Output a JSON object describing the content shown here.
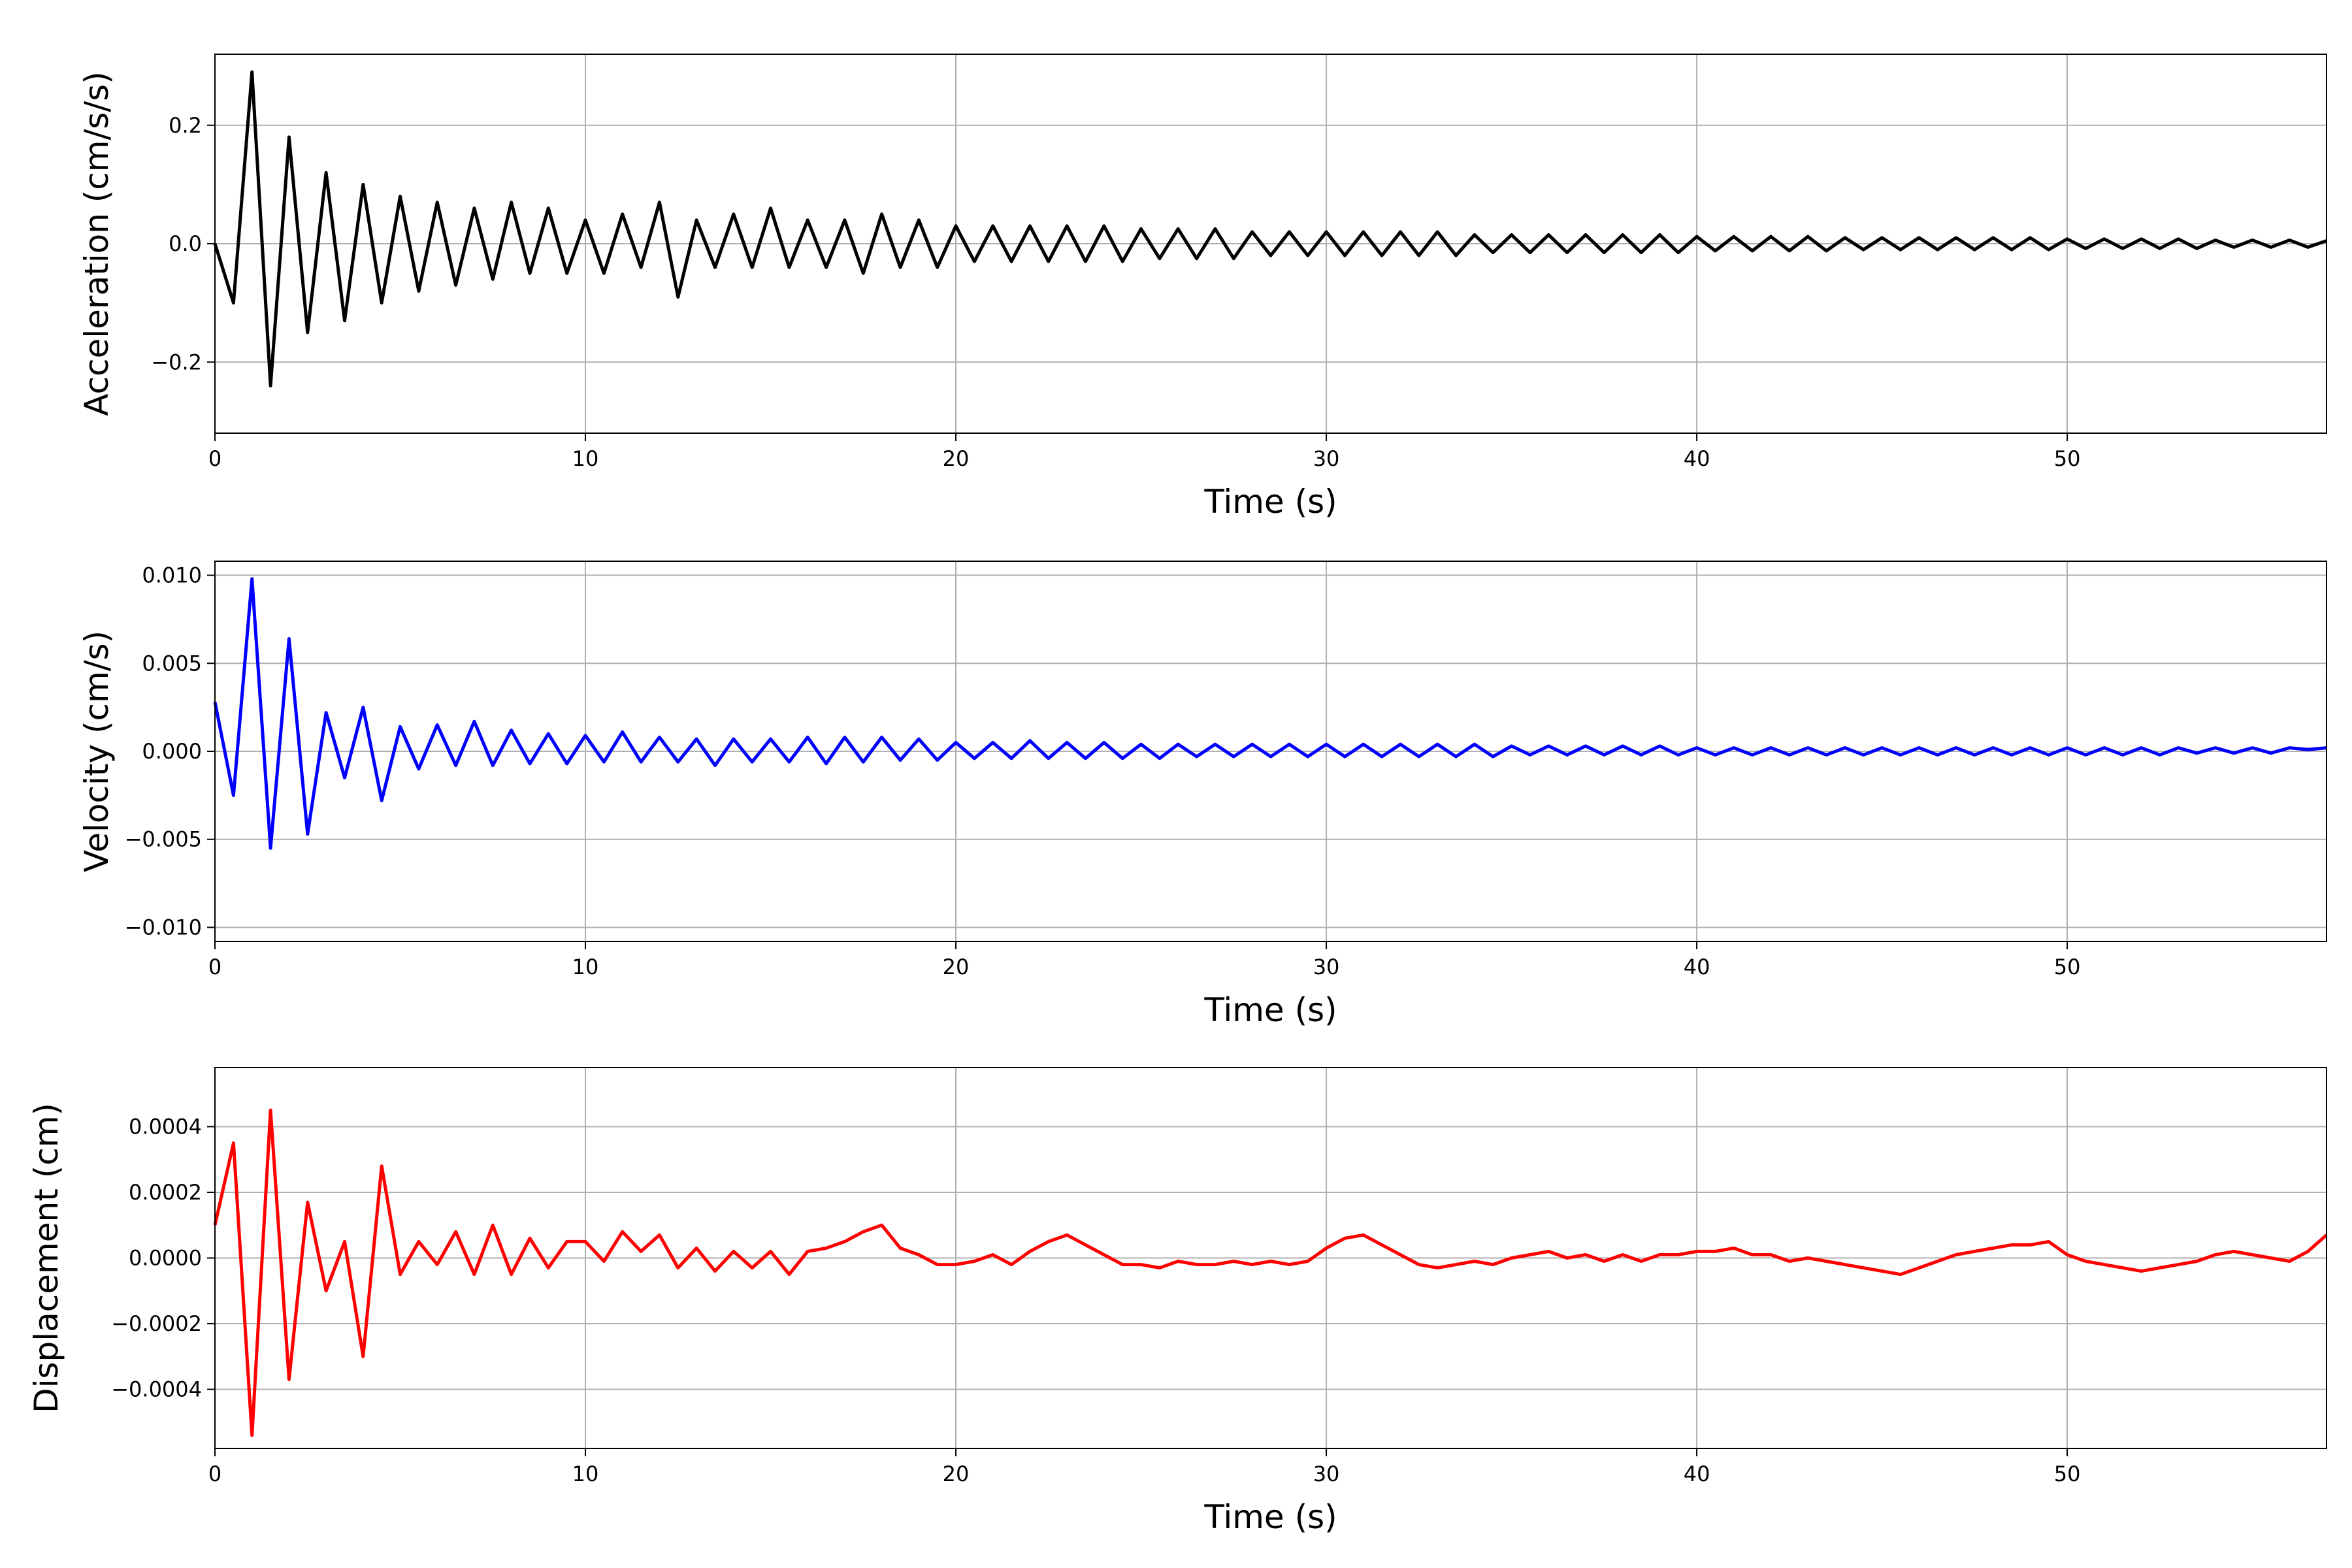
{
  "chart_data": [
    {
      "type": "line",
      "xlabel": "Time (s)",
      "ylabel": "Acceleration (cm/s/s)",
      "color": "#000000",
      "grid": true,
      "xlim": [
        0,
        57
      ],
      "xticks": [
        0,
        10,
        20,
        30,
        40,
        50
      ],
      "ylim": [
        -0.32,
        0.32
      ],
      "yticks": [
        {
          "value": -0.2,
          "label": "−0.2"
        },
        {
          "value": 0,
          "label": "0.0"
        },
        {
          "value": 0.2,
          "label": "0.2"
        }
      ],
      "x": [
        0,
        0.5,
        1,
        1.5,
        2,
        2.5,
        3,
        3.5,
        4,
        4.5,
        5,
        5.5,
        6,
        6.5,
        7,
        7.5,
        8,
        8.5,
        9,
        9.5,
        10,
        10.5,
        11,
        11.5,
        12,
        12.5,
        13,
        13.5,
        14,
        14.5,
        15,
        15.5,
        16,
        16.5,
        17,
        17.5,
        18,
        18.5,
        19,
        19.5,
        20,
        20.5,
        21,
        21.5,
        22,
        22.5,
        23,
        23.5,
        24,
        24.5,
        25,
        25.5,
        26,
        26.5,
        27,
        27.5,
        28,
        28.5,
        29,
        29.5,
        30,
        30.5,
        31,
        31.5,
        32,
        32.5,
        33,
        33.5,
        34,
        34.5,
        35,
        35.5,
        36,
        36.5,
        37,
        37.5,
        38,
        38.5,
        39,
        39.5,
        40,
        40.5,
        41,
        41.5,
        42,
        42.5,
        43,
        43.5,
        44,
        44.5,
        45,
        45.5,
        46,
        46.5,
        47,
        47.5,
        48,
        48.5,
        49,
        49.5,
        50,
        50.5,
        51,
        51.5,
        52,
        52.5,
        53,
        53.5,
        54,
        54.5,
        55,
        55.5,
        56,
        56.5,
        57
      ],
      "values": [
        0,
        -0.1,
        0.29,
        -0.24,
        0.18,
        -0.15,
        0.12,
        -0.13,
        0.1,
        -0.1,
        0.08,
        -0.08,
        0.07,
        -0.07,
        0.06,
        -0.06,
        0.07,
        -0.05,
        0.06,
        -0.05,
        0.04,
        -0.05,
        0.05,
        -0.04,
        0.07,
        -0.09,
        0.04,
        -0.04,
        0.05,
        -0.04,
        0.06,
        -0.04,
        0.04,
        -0.04,
        0.04,
        -0.05,
        0.05,
        -0.04,
        0.04,
        -0.04,
        0.03,
        -0.03,
        0.03,
        -0.03,
        0.03,
        -0.03,
        0.03,
        -0.03,
        0.03,
        -0.03,
        0.025,
        -0.025,
        0.025,
        -0.025,
        0.025,
        -0.025,
        0.02,
        -0.02,
        0.02,
        -0.02,
        0.02,
        -0.02,
        0.02,
        -0.02,
        0.02,
        -0.02,
        0.02,
        -0.02,
        0.015,
        -0.015,
        0.015,
        -0.015,
        0.015,
        -0.015,
        0.015,
        -0.015,
        0.015,
        -0.015,
        0.015,
        -0.015,
        0.012,
        -0.012,
        0.012,
        -0.012,
        0.012,
        -0.012,
        0.012,
        -0.012,
        0.01,
        -0.01,
        0.01,
        -0.01,
        0.01,
        -0.01,
        0.01,
        -0.01,
        0.01,
        -0.01,
        0.01,
        -0.01,
        0.008,
        -0.008,
        0.008,
        -0.008,
        0.008,
        -0.008,
        0.008,
        -0.008,
        0.006,
        -0.006,
        0.006,
        -0.006,
        0.006,
        -0.006,
        0.005
      ]
    },
    {
      "type": "line",
      "xlabel": "Time (s)",
      "ylabel": "Velocity (cm/s)",
      "color": "#0000ff",
      "grid": true,
      "xlim": [
        0,
        57
      ],
      "xticks": [
        0,
        10,
        20,
        30,
        40,
        50
      ],
      "ylim": [
        -0.0108,
        0.0108
      ],
      "yticks": [
        {
          "value": -0.01,
          "label": "−0.010"
        },
        {
          "value": -0.005,
          "label": "−0.005"
        },
        {
          "value": 0,
          "label": "0.000"
        },
        {
          "value": 0.005,
          "label": "0.005"
        },
        {
          "value": 0.01,
          "label": "0.010"
        }
      ],
      "x": [
        0,
        0.5,
        1,
        1.5,
        2,
        2.5,
        3,
        3.5,
        4,
        4.5,
        5,
        5.5,
        6,
        6.5,
        7,
        7.5,
        8,
        8.5,
        9,
        9.5,
        10,
        10.5,
        11,
        11.5,
        12,
        12.5,
        13,
        13.5,
        14,
        14.5,
        15,
        15.5,
        16,
        16.5,
        17,
        17.5,
        18,
        18.5,
        19,
        19.5,
        20,
        20.5,
        21,
        21.5,
        22,
        22.5,
        23,
        23.5,
        24,
        24.5,
        25,
        25.5,
        26,
        26.5,
        27,
        27.5,
        28,
        28.5,
        29,
        29.5,
        30,
        30.5,
        31,
        31.5,
        32,
        32.5,
        33,
        33.5,
        34,
        34.5,
        35,
        35.5,
        36,
        36.5,
        37,
        37.5,
        38,
        38.5,
        39,
        39.5,
        40,
        40.5,
        41,
        41.5,
        42,
        42.5,
        43,
        43.5,
        44,
        44.5,
        45,
        45.5,
        46,
        46.5,
        47,
        47.5,
        48,
        48.5,
        49,
        49.5,
        50,
        50.5,
        51,
        51.5,
        52,
        52.5,
        53,
        53.5,
        54,
        54.5,
        55,
        55.5,
        56,
        56.5,
        57
      ],
      "values": [
        0.0028,
        -0.0025,
        0.0098,
        -0.0055,
        0.0064,
        -0.0047,
        0.0022,
        -0.0015,
        0.0025,
        -0.0028,
        0.0014,
        -0.001,
        0.0015,
        -0.0008,
        0.0017,
        -0.0008,
        0.0012,
        -0.0007,
        0.001,
        -0.0007,
        0.0009,
        -0.0006,
        0.0011,
        -0.0006,
        0.0008,
        -0.0006,
        0.0007,
        -0.0008,
        0.0007,
        -0.0006,
        0.0007,
        -0.0006,
        0.0008,
        -0.0007,
        0.0008,
        -0.0006,
        0.0008,
        -0.0005,
        0.0007,
        -0.0005,
        0.0005,
        -0.0004,
        0.0005,
        -0.0004,
        0.0006,
        -0.0004,
        0.0005,
        -0.0004,
        0.0005,
        -0.0004,
        0.0004,
        -0.0004,
        0.0004,
        -0.0003,
        0.0004,
        -0.0003,
        0.0004,
        -0.0003,
        0.0004,
        -0.0003,
        0.0004,
        -0.0003,
        0.0004,
        -0.0003,
        0.0004,
        -0.0003,
        0.0004,
        -0.0003,
        0.0004,
        -0.0003,
        0.0003,
        -0.0002,
        0.0003,
        -0.0002,
        0.0003,
        -0.0002,
        0.0003,
        -0.0002,
        0.0003,
        -0.0002,
        0.0002,
        -0.0002,
        0.0002,
        -0.0002,
        0.0002,
        -0.0002,
        0.0002,
        -0.0002,
        0.0002,
        -0.0002,
        0.0002,
        -0.0002,
        0.0002,
        -0.0002,
        0.0002,
        -0.0002,
        0.0002,
        -0.0002,
        0.0002,
        -0.0002,
        0.0002,
        -0.0002,
        0.0002,
        -0.0002,
        0.0002,
        -0.0002,
        0.0002,
        -0.0001,
        0.0002,
        -0.0001,
        0.0002,
        -0.0001,
        0.0002,
        0.0001,
        0.0002
      ]
    },
    {
      "type": "line",
      "xlabel": "Time (s)",
      "ylabel": "Displacement (cm)",
      "color": "#ff0000",
      "grid": true,
      "xlim": [
        0,
        57
      ],
      "xticks": [
        0,
        10,
        20,
        30,
        40,
        50
      ],
      "ylim": [
        -0.00058,
        0.00058
      ],
      "yticks": [
        {
          "value": -0.0004,
          "label": "−0.0004"
        },
        {
          "value": -0.0002,
          "label": "−0.0002"
        },
        {
          "value": 0,
          "label": "0.0000"
        },
        {
          "value": 0.0002,
          "label": "0.0002"
        },
        {
          "value": 0.0004,
          "label": "0.0004"
        }
      ],
      "x": [
        0,
        0.5,
        1,
        1.5,
        2,
        2.5,
        3,
        3.5,
        4,
        4.5,
        5,
        5.5,
        6,
        6.5,
        7,
        7.5,
        8,
        8.5,
        9,
        9.5,
        10,
        10.5,
        11,
        11.5,
        12,
        12.5,
        13,
        13.5,
        14,
        14.5,
        15,
        15.5,
        16,
        16.5,
        17,
        17.5,
        18,
        18.5,
        19,
        19.5,
        20,
        20.5,
        21,
        21.5,
        22,
        22.5,
        23,
        23.5,
        24,
        24.5,
        25,
        25.5,
        26,
        26.5,
        27,
        27.5,
        28,
        28.5,
        29,
        29.5,
        30,
        30.5,
        31,
        31.5,
        32,
        32.5,
        33,
        33.5,
        34,
        34.5,
        35,
        35.5,
        36,
        36.5,
        37,
        37.5,
        38,
        38.5,
        39,
        39.5,
        40,
        40.5,
        41,
        41.5,
        42,
        42.5,
        43,
        43.5,
        44,
        44.5,
        45,
        45.5,
        46,
        46.5,
        47,
        47.5,
        48,
        48.5,
        49,
        49.5,
        50,
        50.5,
        51,
        51.5,
        52,
        52.5,
        53,
        53.5,
        54,
        54.5,
        55,
        55.5,
        56,
        56.5,
        57
      ],
      "values": [
        0.0001,
        0.00035,
        -0.00054,
        0.00045,
        -0.00037,
        0.00017,
        -0.0001,
        5e-05,
        -0.0003,
        0.00028,
        -5e-05,
        5e-05,
        -2e-05,
        8e-05,
        -5e-05,
        0.0001,
        -5e-05,
        6e-05,
        -3e-05,
        5e-05,
        5e-05,
        -1e-05,
        8e-05,
        2e-05,
        7e-05,
        -3e-05,
        3e-05,
        -4e-05,
        2e-05,
        -3e-05,
        2e-05,
        -5e-05,
        2e-05,
        3e-05,
        5e-05,
        8e-05,
        0.0001,
        3e-05,
        1e-05,
        -2e-05,
        -2e-05,
        -1e-05,
        1e-05,
        -2e-05,
        2e-05,
        5e-05,
        7e-05,
        4e-05,
        1e-05,
        -2e-05,
        -2e-05,
        -3e-05,
        -1e-05,
        -2e-05,
        -2e-05,
        -1e-05,
        -2e-05,
        -1e-05,
        -2e-05,
        -1e-05,
        3e-05,
        6e-05,
        7e-05,
        4e-05,
        1e-05,
        -2e-05,
        -3e-05,
        -2e-05,
        -1e-05,
        -2e-05,
        0,
        1e-05,
        2e-05,
        0,
        1e-05,
        -1e-05,
        1e-05,
        -1e-05,
        1e-05,
        1e-05,
        2e-05,
        2e-05,
        3e-05,
        1e-05,
        1e-05,
        -1e-05,
        0,
        -1e-05,
        -2e-05,
        -3e-05,
        -4e-05,
        -5e-05,
        -3e-05,
        -1e-05,
        1e-05,
        2e-05,
        3e-05,
        4e-05,
        4e-05,
        5e-05,
        1e-05,
        -1e-05,
        -2e-05,
        -3e-05,
        -4e-05,
        -3e-05,
        -2e-05,
        -1e-05,
        1e-05,
        2e-05,
        1e-05,
        0,
        -1e-05,
        2e-05,
        7e-05
      ]
    }
  ]
}
